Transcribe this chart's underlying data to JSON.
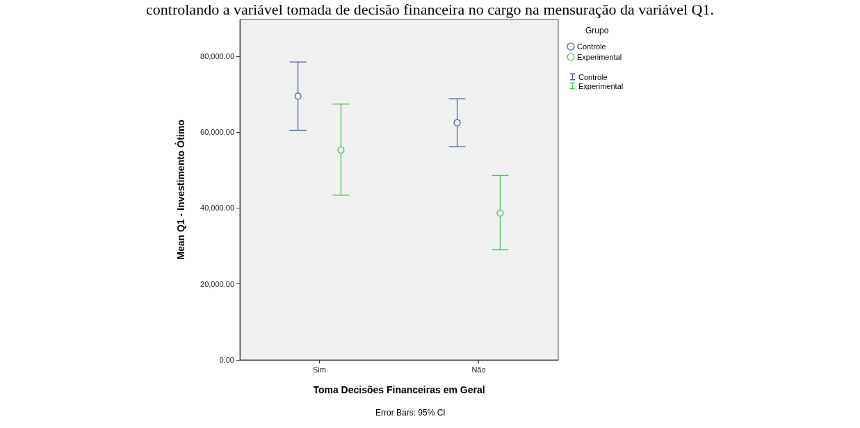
{
  "chart_data": {
    "type": "scatter",
    "title": "controlando a variável tomada de decisão financeira no cargo na mensuração da variável Q1.",
    "xlabel": "Toma Decisões Financeiras em Geral",
    "ylabel": "Mean Q1 - Investimento Ótimo",
    "legend_title": "Grupo",
    "annotations": [
      "Error Bars: 95% CI"
    ],
    "categories": [
      "Sim",
      "Não"
    ],
    "series": [
      {
        "name": "Controle",
        "color": "#4b5fb8",
        "values": [
          69500,
          62500
        ],
        "errors": [
          [
            60500,
            78500
          ],
          [
            56200,
            68800
          ]
        ]
      },
      {
        "name": "Experimental",
        "color": "#4cc35a",
        "values": [
          55300,
          38700
        ],
        "errors": [
          [
            43400,
            67400
          ],
          [
            29000,
            48600
          ]
        ]
      }
    ],
    "ylim": [
      0,
      89700
    ],
    "yticks": [
      {
        "value": 0,
        "label": "0.00"
      },
      {
        "value": 20000,
        "label": "20,000.00"
      },
      {
        "value": 40000,
        "label": "40,000.00"
      },
      {
        "value": 60000,
        "label": "60,000.00"
      },
      {
        "value": 80000,
        "label": "80,000.00"
      }
    ],
    "grid": false,
    "legend": "top right",
    "marker": "circle"
  }
}
